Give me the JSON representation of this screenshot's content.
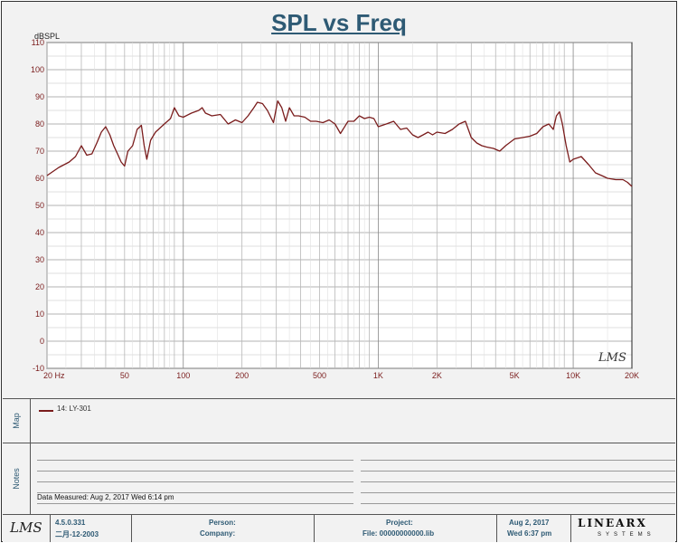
{
  "chart_data": {
    "type": "line",
    "title": "SPL vs Freq",
    "ylabel": "dBSPL",
    "xscale": "log",
    "xlim": [
      20,
      20000
    ],
    "ylim": [
      -10,
      110
    ],
    "yticks": [
      "110",
      "100",
      "90",
      "80",
      "70",
      "60",
      "50",
      "40",
      "30",
      "20",
      "10",
      "0",
      "-10"
    ],
    "xticks": [
      {
        "f": 20,
        "label": "20  Hz"
      },
      {
        "f": 50,
        "label": "50"
      },
      {
        "f": 100,
        "label": "100"
      },
      {
        "f": 200,
        "label": "200"
      },
      {
        "f": 500,
        "label": "500"
      },
      {
        "f": 1000,
        "label": "1K"
      },
      {
        "f": 2000,
        "label": "2K"
      },
      {
        "f": 5000,
        "label": "5K"
      },
      {
        "f": 10000,
        "label": "10K"
      },
      {
        "f": 20000,
        "label": "20K"
      }
    ],
    "grid": true,
    "watermark": "LMS",
    "series": [
      {
        "name": "14: LY-301",
        "color": "#7a1c1c",
        "points": [
          [
            20,
            61
          ],
          [
            23,
            64
          ],
          [
            26,
            66
          ],
          [
            28,
            68
          ],
          [
            30,
            72
          ],
          [
            32,
            68.5
          ],
          [
            34,
            69
          ],
          [
            36,
            73
          ],
          [
            38,
            77
          ],
          [
            40,
            79
          ],
          [
            42,
            76
          ],
          [
            44,
            72
          ],
          [
            46,
            69
          ],
          [
            48,
            66
          ],
          [
            50,
            64.5
          ],
          [
            52,
            70
          ],
          [
            55,
            72
          ],
          [
            58,
            78
          ],
          [
            61,
            79.5
          ],
          [
            63,
            72
          ],
          [
            65,
            67
          ],
          [
            68,
            74
          ],
          [
            72,
            77
          ],
          [
            80,
            80
          ],
          [
            86,
            82
          ],
          [
            90,
            86
          ],
          [
            95,
            83
          ],
          [
            100,
            82.5
          ],
          [
            110,
            84
          ],
          [
            120,
            85
          ],
          [
            125,
            86
          ],
          [
            130,
            84
          ],
          [
            140,
            83
          ],
          [
            155,
            83.5
          ],
          [
            170,
            80
          ],
          [
            185,
            81.5
          ],
          [
            200,
            80.5
          ],
          [
            215,
            83
          ],
          [
            230,
            86
          ],
          [
            240,
            88
          ],
          [
            255,
            87.5
          ],
          [
            270,
            85
          ],
          [
            290,
            80.5
          ],
          [
            305,
            88.5
          ],
          [
            320,
            86
          ],
          [
            335,
            81
          ],
          [
            350,
            86
          ],
          [
            370,
            83
          ],
          [
            390,
            83
          ],
          [
            420,
            82.5
          ],
          [
            450,
            81
          ],
          [
            480,
            81
          ],
          [
            520,
            80.5
          ],
          [
            560,
            81.5
          ],
          [
            600,
            80
          ],
          [
            640,
            76.5
          ],
          [
            700,
            81
          ],
          [
            750,
            81
          ],
          [
            800,
            83
          ],
          [
            850,
            82
          ],
          [
            900,
            82.5
          ],
          [
            950,
            82
          ],
          [
            1000,
            79
          ],
          [
            1100,
            80
          ],
          [
            1200,
            81
          ],
          [
            1300,
            78
          ],
          [
            1400,
            78.5
          ],
          [
            1500,
            76
          ],
          [
            1600,
            75
          ],
          [
            1700,
            76
          ],
          [
            1800,
            77
          ],
          [
            1900,
            76
          ],
          [
            2000,
            77
          ],
          [
            2200,
            76.5
          ],
          [
            2400,
            78
          ],
          [
            2600,
            80
          ],
          [
            2800,
            81
          ],
          [
            3000,
            75
          ],
          [
            3200,
            73
          ],
          [
            3400,
            72
          ],
          [
            3600,
            71.5
          ],
          [
            3900,
            71
          ],
          [
            4200,
            70
          ],
          [
            4500,
            72
          ],
          [
            5000,
            74.5
          ],
          [
            5500,
            75
          ],
          [
            6000,
            75.5
          ],
          [
            6500,
            76.5
          ],
          [
            7000,
            79
          ],
          [
            7500,
            80
          ],
          [
            7900,
            78
          ],
          [
            8200,
            83
          ],
          [
            8500,
            84.5
          ],
          [
            8800,
            80
          ],
          [
            9200,
            72
          ],
          [
            9600,
            66
          ],
          [
            10000,
            67
          ],
          [
            11000,
            68
          ],
          [
            12000,
            65
          ],
          [
            13000,
            62
          ],
          [
            14000,
            61
          ],
          [
            15000,
            60
          ],
          [
            16500,
            59.5
          ],
          [
            18000,
            59.5
          ],
          [
            19000,
            58.5
          ],
          [
            20000,
            57
          ]
        ]
      }
    ]
  },
  "panels": {
    "map_label": "Map",
    "notes_label": "Notes",
    "legend_entry": "14: LY-301",
    "date_measured": "Data Measured: Aug  2, 2017   Wed  6:14 pm"
  },
  "footer": {
    "logo": "LMS",
    "version": "4.5.0.331",
    "version_date": "二月-12-2003",
    "person_label": "Person:",
    "company_label": "Company:",
    "project_label": "Project:",
    "file_label": "File: 00000000000.lib",
    "date": "Aug  2, 2017",
    "time": "Wed  6:37 pm",
    "brand": "LINEARX",
    "brand_sub": "SYSTEMS"
  }
}
